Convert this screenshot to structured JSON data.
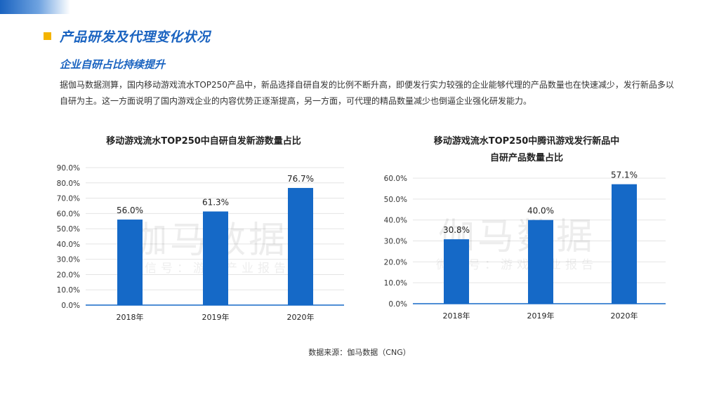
{
  "header": {
    "title": "产品研发及代理变化状况",
    "subtitle": "企业自研占比持续提升",
    "paragraph": "据伽马数据测算，国内移动游戏流水TOP250产品中，新品选择自研自发的比例不断升高，即便发行实力较强的企业能够代理的产品数量也在快速减少，发行新品多以自研为主。这一方面说明了国内游戏企业的内容优势正逐渐提高，另一方面，可代理的精品数量减少也倒逼企业强化研发能力。"
  },
  "watermark": {
    "main": "伽马数据",
    "sub": "微信号：游戏产业报告"
  },
  "colors": {
    "accent": "#1a63c0",
    "bar": "#1569c7",
    "marker": "#f4b400"
  },
  "chart_data": [
    {
      "type": "bar",
      "title_lines": [
        "移动游戏流水TOP250中自研自发新游数量占比"
      ],
      "categories": [
        "2018年",
        "2019年",
        "2020年"
      ],
      "values": [
        56.0,
        61.3,
        76.7
      ],
      "value_labels": [
        "56.0%",
        "61.3%",
        "76.7%"
      ],
      "ylim": [
        0,
        90
      ],
      "yticks": [
        "0.0%",
        "10.0%",
        "20.0%",
        "30.0%",
        "40.0%",
        "50.0%",
        "60.0%",
        "70.0%",
        "80.0%",
        "90.0%"
      ],
      "grid": true
    },
    {
      "type": "bar",
      "title_lines": [
        "移动游戏流水TOP250中腾讯游戏发行新品中",
        "自研产品数量占比"
      ],
      "categories": [
        "2018年",
        "2019年",
        "2020年"
      ],
      "values": [
        30.8,
        40.0,
        57.1
      ],
      "value_labels": [
        "30.8%",
        "40.0%",
        "57.1%"
      ],
      "ylim": [
        0,
        60
      ],
      "yticks": [
        "0.0%",
        "10.0%",
        "20.0%",
        "30.0%",
        "40.0%",
        "50.0%",
        "60.0%"
      ],
      "grid": true
    }
  ],
  "footer": {
    "source": "数据来源：伽马数据（CNG）"
  }
}
